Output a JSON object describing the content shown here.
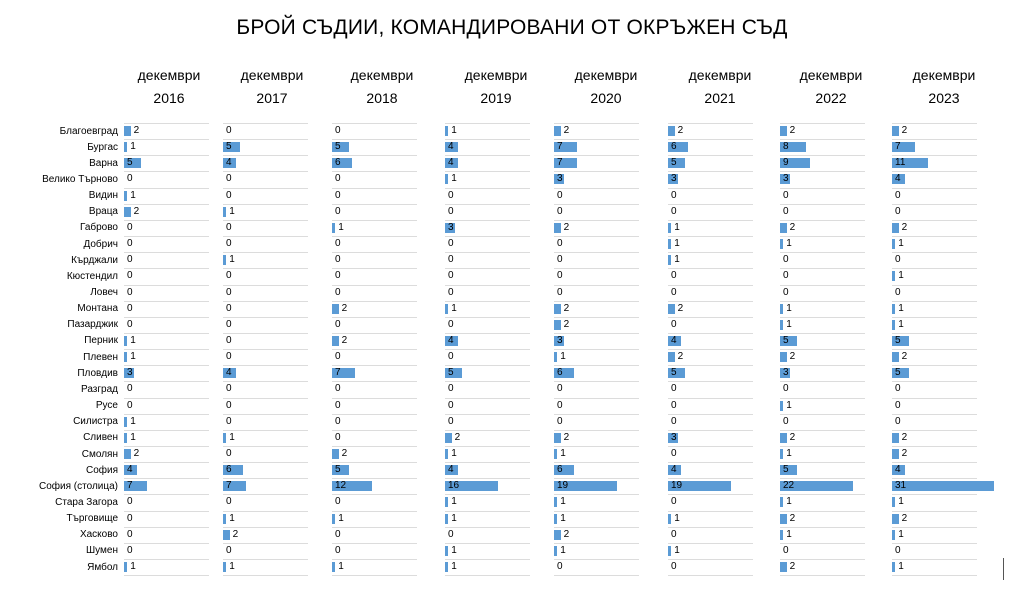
{
  "chart_data": {
    "type": "bar",
    "title": "БРОЙ СЪДИИ, КОМАНДИРОВАНИ ОТ ОКРЪЖЕН СЪД",
    "categories": [
      "Благоевград",
      "Бургас",
      "Варна",
      "Велико Търново",
      "Видин",
      "Враца",
      "Габрово",
      "Добрич",
      "Кърджали",
      "Кюстендил",
      "Ловеч",
      "Монтана",
      "Пазарджик",
      "Перник",
      "Плевен",
      "Пловдив",
      "Разград",
      "Русе",
      "Силистра",
      "Сливен",
      "Смолян",
      "София",
      "София (столица)",
      "Стара Загора",
      "Търговище",
      "Хасково",
      "Шумен",
      "Ямбол"
    ],
    "series": [
      {
        "name": "декември 2016",
        "values": [
          2,
          1,
          5,
          0,
          1,
          2,
          0,
          0,
          0,
          0,
          0,
          0,
          0,
          1,
          1,
          3,
          0,
          0,
          1,
          1,
          2,
          4,
          7,
          0,
          0,
          0,
          0,
          1
        ]
      },
      {
        "name": "декември 2017",
        "values": [
          0,
          5,
          4,
          0,
          0,
          1,
          0,
          0,
          1,
          0,
          0,
          0,
          0,
          0,
          0,
          4,
          0,
          0,
          0,
          1,
          0,
          6,
          7,
          0,
          1,
          2,
          0,
          1
        ]
      },
      {
        "name": "декември 2018",
        "values": [
          0,
          5,
          6,
          0,
          0,
          0,
          1,
          0,
          0,
          0,
          0,
          2,
          0,
          2,
          0,
          7,
          0,
          0,
          0,
          0,
          2,
          5,
          12,
          0,
          1,
          0,
          0,
          1
        ]
      },
      {
        "name": "декември 2019",
        "values": [
          1,
          4,
          4,
          1,
          0,
          0,
          3,
          0,
          0,
          0,
          0,
          1,
          0,
          4,
          0,
          5,
          0,
          0,
          0,
          2,
          1,
          4,
          16,
          1,
          1,
          0,
          1,
          1
        ]
      },
      {
        "name": "декември 2020",
        "values": [
          2,
          7,
          7,
          3,
          0,
          0,
          2,
          0,
          0,
          0,
          0,
          2,
          2,
          3,
          1,
          6,
          0,
          0,
          0,
          2,
          1,
          6,
          19,
          1,
          1,
          2,
          1,
          0
        ]
      },
      {
        "name": "декември 2021",
        "values": [
          2,
          6,
          5,
          3,
          0,
          0,
          1,
          1,
          1,
          0,
          0,
          2,
          0,
          4,
          2,
          5,
          0,
          0,
          0,
          3,
          0,
          4,
          19,
          0,
          1,
          0,
          1,
          0
        ]
      },
      {
        "name": "декември 2022",
        "values": [
          2,
          8,
          9,
          3,
          0,
          0,
          2,
          1,
          0,
          0,
          0,
          1,
          1,
          5,
          2,
          3,
          0,
          1,
          0,
          2,
          1,
          5,
          22,
          1,
          2,
          1,
          0,
          2
        ]
      },
      {
        "name": "декември 2023",
        "values": [
          2,
          7,
          11,
          4,
          0,
          0,
          2,
          1,
          0,
          1,
          0,
          1,
          1,
          5,
          2,
          5,
          0,
          0,
          0,
          2,
          2,
          4,
          31,
          1,
          2,
          1,
          0,
          1
        ]
      }
    ],
    "bar_color": "#5b9bd5",
    "legend": "none",
    "grid": false
  }
}
